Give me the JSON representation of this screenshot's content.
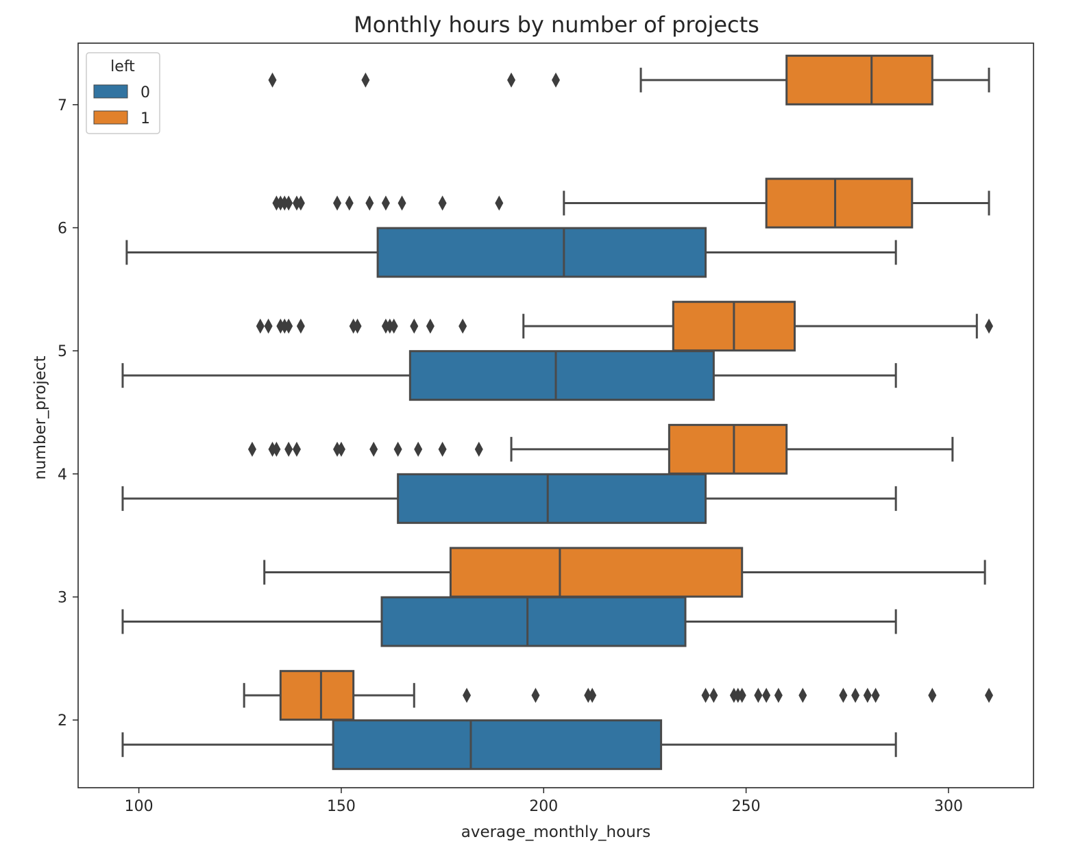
{
  "chart_data": {
    "type": "boxplot",
    "orientation": "horizontal",
    "title": "Monthly hours by number of projects",
    "xlabel": "average_monthly_hours",
    "ylabel": "number_project",
    "xlim": [
      85,
      321
    ],
    "ylim": [
      1.45,
      7.5
    ],
    "xticks": [
      100,
      150,
      200,
      250,
      300
    ],
    "yticks": [
      2,
      3,
      4,
      5,
      6,
      7
    ],
    "grid": false,
    "legend": {
      "title": "left",
      "position": "top-left",
      "entries": [
        {
          "label": "0",
          "color": "#3274a1"
        },
        {
          "label": "1",
          "color": "#e1812c"
        }
      ]
    },
    "series": [
      {
        "name": "0",
        "color": "#3274a1",
        "boxes": [
          {
            "category": 2,
            "whisker_low": 96,
            "q1": 148,
            "median": 182,
            "q3": 229,
            "whisker_high": 287,
            "outliers": []
          },
          {
            "category": 3,
            "whisker_low": 96,
            "q1": 160,
            "median": 196,
            "q3": 235,
            "whisker_high": 287,
            "outliers": []
          },
          {
            "category": 4,
            "whisker_low": 96,
            "q1": 164,
            "median": 201,
            "q3": 240,
            "whisker_high": 287,
            "outliers": []
          },
          {
            "category": 5,
            "whisker_low": 96,
            "q1": 167,
            "median": 203,
            "q3": 242,
            "whisker_high": 287,
            "outliers": []
          },
          {
            "category": 6,
            "whisker_low": 97,
            "q1": 159,
            "median": 205,
            "q3": 240,
            "whisker_high": 287,
            "outliers": []
          }
        ]
      },
      {
        "name": "1",
        "color": "#e1812c",
        "boxes": [
          {
            "category": 2,
            "whisker_low": 126,
            "q1": 135,
            "median": 145,
            "q3": 153,
            "whisker_high": 168,
            "outliers": [
              181,
              198,
              211,
              212,
              240,
              242,
              247,
              248,
              249,
              253,
              255,
              258,
              264,
              274,
              277,
              280,
              282,
              296,
              310
            ]
          },
          {
            "category": 3,
            "whisker_low": 131,
            "q1": 177,
            "median": 204,
            "q3": 249,
            "whisker_high": 309,
            "outliers": []
          },
          {
            "category": 4,
            "whisker_low": 192,
            "q1": 231,
            "median": 247,
            "q3": 260,
            "whisker_high": 301,
            "outliers": [
              128,
              133,
              134,
              137,
              139,
              149,
              150,
              158,
              164,
              169,
              175,
              184
            ]
          },
          {
            "category": 5,
            "whisker_low": 195,
            "q1": 232,
            "median": 247,
            "q3": 262,
            "whisker_high": 307,
            "outliers": [
              130,
              132,
              135,
              136,
              137,
              140,
              153,
              154,
              161,
              162,
              163,
              168,
              172,
              180,
              310
            ]
          },
          {
            "category": 6,
            "whisker_low": 205,
            "q1": 255,
            "median": 272,
            "q3": 291,
            "whisker_high": 310,
            "outliers": [
              134,
              135,
              136,
              137,
              139,
              140,
              149,
              152,
              157,
              161,
              165,
              175,
              189
            ]
          },
          {
            "category": 7,
            "whisker_low": 224,
            "q1": 260,
            "median": 281,
            "q3": 296,
            "whisker_high": 310,
            "outliers": [
              133,
              156,
              192,
              203
            ]
          }
        ]
      }
    ]
  }
}
